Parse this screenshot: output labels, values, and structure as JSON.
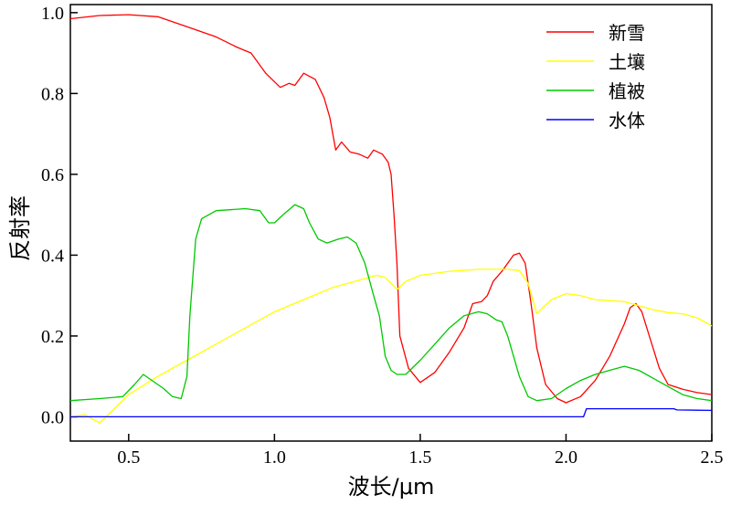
{
  "chart_data": {
    "type": "line",
    "title": "",
    "xlabel": "波长/μm",
    "ylabel": "反射率",
    "xlim": [
      0.3,
      2.5
    ],
    "ylim": [
      -0.06,
      1.02
    ],
    "grid": false,
    "legend_position": "top-right",
    "x_ticks": [
      {
        "value": 0.5,
        "label": "0.5"
      },
      {
        "value": 1.0,
        "label": "1.0"
      },
      {
        "value": 1.5,
        "label": "1.5"
      },
      {
        "value": 2.0,
        "label": "2.0"
      },
      {
        "value": 2.5,
        "label": "2.5"
      }
    ],
    "y_ticks": [
      {
        "value": 0.0,
        "label": "0.0"
      },
      {
        "value": 0.2,
        "label": "0.2"
      },
      {
        "value": 0.4,
        "label": "0.4"
      },
      {
        "value": 0.6,
        "label": "0.6"
      },
      {
        "value": 0.8,
        "label": "0.8"
      },
      {
        "value": 1.0,
        "label": "1.0"
      }
    ],
    "series": [
      {
        "name": "新雪",
        "color": "#ff0000",
        "points": [
          [
            0.3,
            0.985
          ],
          [
            0.4,
            0.993
          ],
          [
            0.5,
            0.995
          ],
          [
            0.6,
            0.99
          ],
          [
            0.7,
            0.965
          ],
          [
            0.8,
            0.94
          ],
          [
            0.87,
            0.915
          ],
          [
            0.92,
            0.9
          ],
          [
            0.97,
            0.85
          ],
          [
            1.02,
            0.815
          ],
          [
            1.05,
            0.825
          ],
          [
            1.07,
            0.82
          ],
          [
            1.1,
            0.85
          ],
          [
            1.14,
            0.835
          ],
          [
            1.17,
            0.79
          ],
          [
            1.19,
            0.74
          ],
          [
            1.2,
            0.7
          ],
          [
            1.21,
            0.66
          ],
          [
            1.23,
            0.68
          ],
          [
            1.26,
            0.655
          ],
          [
            1.29,
            0.65
          ],
          [
            1.32,
            0.64
          ],
          [
            1.34,
            0.66
          ],
          [
            1.37,
            0.65
          ],
          [
            1.39,
            0.63
          ],
          [
            1.4,
            0.6
          ],
          [
            1.41,
            0.5
          ],
          [
            1.42,
            0.38
          ],
          [
            1.43,
            0.2
          ],
          [
            1.46,
            0.12
          ],
          [
            1.5,
            0.085
          ],
          [
            1.55,
            0.11
          ],
          [
            1.6,
            0.16
          ],
          [
            1.65,
            0.22
          ],
          [
            1.68,
            0.28
          ],
          [
            1.71,
            0.285
          ],
          [
            1.73,
            0.3
          ],
          [
            1.75,
            0.335
          ],
          [
            1.78,
            0.36
          ],
          [
            1.82,
            0.4
          ],
          [
            1.84,
            0.405
          ],
          [
            1.86,
            0.38
          ],
          [
            1.88,
            0.28
          ],
          [
            1.9,
            0.17
          ],
          [
            1.93,
            0.08
          ],
          [
            1.97,
            0.045
          ],
          [
            2.0,
            0.035
          ],
          [
            2.05,
            0.05
          ],
          [
            2.1,
            0.09
          ],
          [
            2.15,
            0.15
          ],
          [
            2.2,
            0.23
          ],
          [
            2.22,
            0.27
          ],
          [
            2.24,
            0.28
          ],
          [
            2.26,
            0.26
          ],
          [
            2.29,
            0.19
          ],
          [
            2.32,
            0.12
          ],
          [
            2.35,
            0.08
          ],
          [
            2.4,
            0.068
          ],
          [
            2.45,
            0.06
          ],
          [
            2.5,
            0.055
          ]
        ]
      },
      {
        "name": "土壤",
        "color": "#ffff00",
        "points": [
          [
            0.3,
            0.0
          ],
          [
            0.35,
            0.005
          ],
          [
            0.4,
            -0.015
          ],
          [
            0.45,
            0.02
          ],
          [
            0.5,
            0.055
          ],
          [
            0.6,
            0.1
          ],
          [
            0.7,
            0.14
          ],
          [
            0.8,
            0.18
          ],
          [
            0.9,
            0.22
          ],
          [
            1.0,
            0.26
          ],
          [
            1.1,
            0.29
          ],
          [
            1.2,
            0.32
          ],
          [
            1.3,
            0.34
          ],
          [
            1.35,
            0.35
          ],
          [
            1.38,
            0.345
          ],
          [
            1.4,
            0.33
          ],
          [
            1.42,
            0.315
          ],
          [
            1.45,
            0.335
          ],
          [
            1.5,
            0.35
          ],
          [
            1.6,
            0.36
          ],
          [
            1.7,
            0.365
          ],
          [
            1.8,
            0.365
          ],
          [
            1.84,
            0.362
          ],
          [
            1.87,
            0.33
          ],
          [
            1.9,
            0.255
          ],
          [
            1.92,
            0.27
          ],
          [
            1.95,
            0.29
          ],
          [
            2.0,
            0.305
          ],
          [
            2.05,
            0.3
          ],
          [
            2.1,
            0.29
          ],
          [
            2.2,
            0.285
          ],
          [
            2.25,
            0.275
          ],
          [
            2.3,
            0.265
          ],
          [
            2.35,
            0.258
          ],
          [
            2.4,
            0.255
          ],
          [
            2.45,
            0.245
          ],
          [
            2.5,
            0.225
          ]
        ]
      },
      {
        "name": "植被",
        "color": "#00c800",
        "points": [
          [
            0.3,
            0.04
          ],
          [
            0.4,
            0.045
          ],
          [
            0.48,
            0.05
          ],
          [
            0.52,
            0.08
          ],
          [
            0.55,
            0.105
          ],
          [
            0.58,
            0.09
          ],
          [
            0.62,
            0.07
          ],
          [
            0.65,
            0.05
          ],
          [
            0.68,
            0.045
          ],
          [
            0.7,
            0.1
          ],
          [
            0.71,
            0.25
          ],
          [
            0.73,
            0.44
          ],
          [
            0.75,
            0.49
          ],
          [
            0.8,
            0.51
          ],
          [
            0.9,
            0.515
          ],
          [
            0.95,
            0.51
          ],
          [
            0.98,
            0.48
          ],
          [
            1.0,
            0.48
          ],
          [
            1.03,
            0.5
          ],
          [
            1.07,
            0.525
          ],
          [
            1.1,
            0.515
          ],
          [
            1.12,
            0.48
          ],
          [
            1.15,
            0.44
          ],
          [
            1.18,
            0.43
          ],
          [
            1.22,
            0.44
          ],
          [
            1.25,
            0.445
          ],
          [
            1.28,
            0.43
          ],
          [
            1.31,
            0.38
          ],
          [
            1.34,
            0.3
          ],
          [
            1.36,
            0.25
          ],
          [
            1.38,
            0.15
          ],
          [
            1.4,
            0.115
          ],
          [
            1.42,
            0.105
          ],
          [
            1.45,
            0.105
          ],
          [
            1.5,
            0.14
          ],
          [
            1.55,
            0.18
          ],
          [
            1.6,
            0.22
          ],
          [
            1.65,
            0.25
          ],
          [
            1.7,
            0.26
          ],
          [
            1.73,
            0.255
          ],
          [
            1.76,
            0.24
          ],
          [
            1.78,
            0.235
          ],
          [
            1.8,
            0.2
          ],
          [
            1.84,
            0.1
          ],
          [
            1.87,
            0.05
          ],
          [
            1.9,
            0.04
          ],
          [
            1.95,
            0.045
          ],
          [
            2.0,
            0.07
          ],
          [
            2.05,
            0.09
          ],
          [
            2.1,
            0.105
          ],
          [
            2.15,
            0.115
          ],
          [
            2.2,
            0.125
          ],
          [
            2.25,
            0.115
          ],
          [
            2.3,
            0.095
          ],
          [
            2.35,
            0.075
          ],
          [
            2.4,
            0.055
          ],
          [
            2.45,
            0.045
          ],
          [
            2.5,
            0.04
          ]
        ]
      },
      {
        "name": "水体",
        "color": "#0000ff",
        "points": [
          [
            0.3,
            0.0
          ],
          [
            0.5,
            0.0
          ],
          [
            1.0,
            0.0
          ],
          [
            1.5,
            0.0
          ],
          [
            2.0,
            0.0
          ],
          [
            2.06,
            0.0
          ],
          [
            2.07,
            0.02
          ],
          [
            2.2,
            0.02
          ],
          [
            2.37,
            0.02
          ],
          [
            2.38,
            0.017
          ],
          [
            2.5,
            0.016
          ]
        ]
      }
    ]
  }
}
